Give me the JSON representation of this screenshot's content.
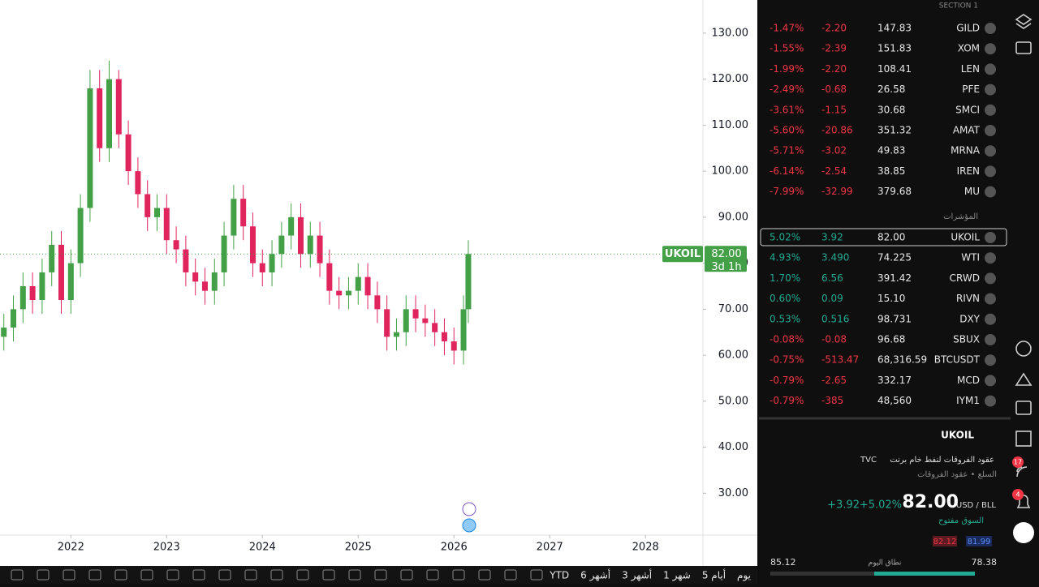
{
  "chart_data": {
    "type": "candlestick",
    "x": [
      2021.3,
      2021.4,
      2021.5,
      2021.6,
      2021.7,
      2021.8,
      2021.9,
      2022.0,
      2022.1,
      2022.2,
      2022.3,
      2022.4,
      2022.5,
      2022.6,
      2022.7,
      2022.8,
      2022.9,
      2023.0,
      2023.1,
      2023.2,
      2023.3,
      2023.4,
      2023.5,
      2023.6,
      2023.7,
      2023.8,
      2023.9,
      2024.0,
      2024.1,
      2024.2,
      2024.3,
      2024.4,
      2024.5,
      2024.6,
      2024.7,
      2024.8,
      2024.9,
      2025.0,
      2025.1,
      2025.2,
      2025.3,
      2025.4,
      2025.5,
      2025.6,
      2025.7,
      2025.8,
      2025.9,
      2026.0,
      2026.1,
      2026.15
    ],
    "open": [
      64,
      66,
      70,
      75,
      72,
      78,
      84,
      72,
      80,
      92,
      118,
      105,
      120,
      108,
      100,
      95,
      90,
      92,
      85,
      83,
      78,
      76,
      74,
      78,
      86,
      94,
      88,
      80,
      78,
      82,
      86,
      90,
      82,
      86,
      80,
      74,
      73,
      74,
      77,
      73,
      70,
      64,
      65,
      70,
      68,
      67,
      65,
      63,
      61,
      70
    ],
    "high": [
      69,
      73,
      78,
      78,
      81,
      87,
      87,
      83,
      95,
      122,
      122,
      124,
      122,
      111,
      103,
      98,
      95,
      95,
      88,
      86,
      81,
      79,
      81,
      89,
      97,
      97,
      91,
      83,
      85,
      89,
      93,
      93,
      89,
      89,
      83,
      77,
      77,
      80,
      80,
      76,
      73,
      68,
      73,
      73,
      71,
      70,
      68,
      66,
      73,
      85
    ],
    "low": [
      61,
      63,
      67,
      69,
      69,
      75,
      69,
      69,
      77,
      89,
      102,
      102,
      105,
      97,
      92,
      87,
      87,
      82,
      80,
      75,
      73,
      71,
      71,
      75,
      83,
      85,
      77,
      75,
      75,
      79,
      83,
      79,
      79,
      77,
      71,
      70,
      70,
      71,
      70,
      67,
      61,
      61,
      62,
      65,
      64,
      62,
      60,
      58,
      58,
      67
    ],
    "close": [
      66,
      70,
      75,
      72,
      78,
      84,
      72,
      80,
      92,
      118,
      105,
      120,
      108,
      100,
      95,
      90,
      92,
      85,
      83,
      78,
      76,
      74,
      78,
      86,
      94,
      88,
      80,
      78,
      82,
      86,
      90,
      82,
      86,
      80,
      74,
      73,
      74,
      77,
      73,
      70,
      64,
      65,
      70,
      68,
      67,
      65,
      63,
      61,
      70,
      82
    ],
    "xlim": [
      2021.26,
      2028.6
    ],
    "xticks": [
      2022,
      2023,
      2024,
      2025,
      2026,
      2027,
      2028
    ],
    "ylim": [
      20.9,
      137.2
    ],
    "yticks": [
      {
        "value": 30,
        "label": "30.00"
      },
      {
        "value": 40,
        "label": "40.00"
      },
      {
        "value": 50,
        "label": "50.00"
      },
      {
        "value": 60,
        "label": "60.00"
      },
      {
        "value": 70,
        "label": "70.00"
      },
      {
        "value": 80,
        "label": "80.00"
      },
      {
        "value": 90,
        "label": "90.00"
      },
      {
        "value": 100,
        "label": "100.00"
      },
      {
        "value": 110,
        "label": "110.00"
      },
      {
        "value": 120,
        "label": "120.00"
      },
      {
        "value": 130,
        "label": "130.00"
      }
    ],
    "last_price": {
      "symbol": "UKOIL",
      "price": {
        "value": 82,
        "label": "82.00"
      },
      "countdown": "3d 1h"
    },
    "up_color": "#43a047",
    "down_color": "#e0245e"
  },
  "watchlist": {
    "section": "SECTION 1",
    "group": "المؤشرات",
    "rows": [
      {
        "symbol": "GILD",
        "last": "147.83",
        "change": "-2.20",
        "change_pct": "-1.47%"
      },
      {
        "symbol": "XOM",
        "last": "151.83",
        "change": "-2.39",
        "change_pct": "-1.55%"
      },
      {
        "symbol": "LEN",
        "last": "108.41",
        "change": "-2.20",
        "change_pct": "-1.99%"
      },
      {
        "symbol": "PFE",
        "last": "26.58",
        "change": "-0.68",
        "change_pct": "-2.49%"
      },
      {
        "symbol": "SMCI",
        "last": "30.68",
        "change": "-1.15",
        "change_pct": "-3.61%"
      },
      {
        "symbol": "AMAT",
        "last": "351.32",
        "change": "-20.86",
        "change_pct": "-5.60%"
      },
      {
        "symbol": "MRNA",
        "last": "49.83",
        "change": "-3.02",
        "change_pct": "-5.71%"
      },
      {
        "symbol": "IREN",
        "last": "38.85",
        "change": "-2.54",
        "change_pct": "-6.14%"
      },
      {
        "symbol": "MU",
        "last": "379.68",
        "change": "-32.99",
        "change_pct": "-7.99%"
      }
    ],
    "group_rows": [
      {
        "symbol": "UKOIL",
        "last": "82.00",
        "change": "3.92",
        "change_pct": "5.02%"
      },
      {
        "symbol": "WTI",
        "last": "74.225",
        "change": "3.490",
        "change_pct": "4.93%"
      },
      {
        "symbol": "CRWD",
        "last": "391.42",
        "change": "6.56",
        "change_pct": "1.70%"
      },
      {
        "symbol": "RIVN",
        "last": "15.10",
        "change": "0.09",
        "change_pct": "0.60%"
      },
      {
        "symbol": "DXY",
        "last": "98.731",
        "change": "0.516",
        "change_pct": "0.53%"
      },
      {
        "symbol": "SBUX",
        "last": "96.68",
        "change": "-0.08",
        "change_pct": "-0.08%"
      },
      {
        "symbol": "BTCUSDT",
        "last": "68,316.59",
        "change": "-513.47",
        "change_pct": "-0.75%"
      },
      {
        "symbol": "MCD",
        "last": "332.17",
        "change": "-2.65",
        "change_pct": "-0.79%"
      },
      {
        "symbol": "IYM1",
        "last": "48,560",
        "change": "-385",
        "change_pct": "-0.79%"
      }
    ]
  },
  "details": {
    "symbol": "UKOIL",
    "description": "عقود الفروقات لنفط خام برنت",
    "exchange": "TVC",
    "category": "السلع • عقود الفروقات",
    "price": "82.00",
    "currency": "USD / BLL",
    "change": "+3.92",
    "change_pct": "+5.02%",
    "status": "السوق مفتوح",
    "bid": "82.12",
    "ask": "81.99",
    "range_label": "نطاق اليوم",
    "range_high": "85.12",
    "range_low": "78.38"
  },
  "toolbar": {
    "ranges": [
      "يوم",
      "5 أيام",
      "1 شهر",
      "3 أشهر",
      "6 أشهر",
      "YTD"
    ]
  },
  "badges": [
    "17",
    "4"
  ]
}
